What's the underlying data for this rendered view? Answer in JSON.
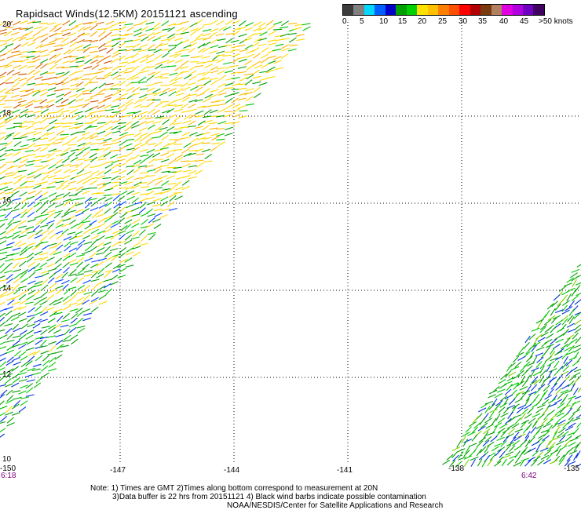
{
  "title": "Rapidsact Winds(12.5KM) 20151121 ascending",
  "legend": {
    "colors": [
      "#3c3c3c",
      "#808080",
      "#00d8ff",
      "#0060ff",
      "#0000c8",
      "#00a000",
      "#00d000",
      "#ffe000",
      "#ffc000",
      "#ff8000",
      "#ff5000",
      "#ff0000",
      "#b00000",
      "#7a3a10",
      "#b08060",
      "#e000e0",
      "#b000e0",
      "#7000c0",
      "#400060"
    ],
    "labels": [
      "0",
      "5",
      "10",
      "15",
      "20",
      "25",
      "30",
      "35",
      "40",
      "45",
      ">50 knots"
    ]
  },
  "lat_labels": [
    "20",
    "18",
    "16",
    "14",
    "12",
    "10"
  ],
  "lon_labels": [
    "-150",
    "-147",
    "-144",
    "-141",
    "-138",
    "-135"
  ],
  "time_labels": [
    "6:18",
    "6:42"
  ],
  "notes": {
    "line1": "Note: 1) Times are GMT 2)Times along bottom correspond to measurement at 20N",
    "line2": "3)Data buffer is 22 hrs from 20151121 4) Black wind barbs indicate possible contamination",
    "line3": "NOAA/NESDIS/Center for Satellite Applications and Research"
  }
}
